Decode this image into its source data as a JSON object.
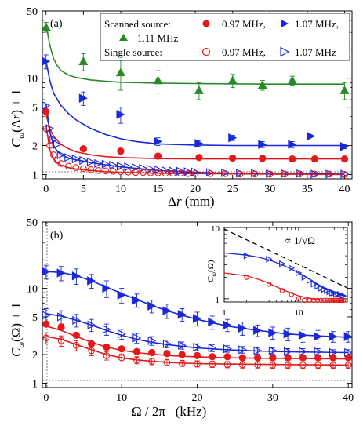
{
  "chart_data": [
    {
      "type": "scatter",
      "panel_label": "(a)",
      "xlabel_symbol": "Δr",
      "xlabel_unit": "(mm)",
      "ylabel": "C_ω(Δr) + 1",
      "xlim": [
        -0.5,
        41
      ],
      "ylim": [
        0.9,
        50
      ],
      "yscale": "log",
      "x_ticks": [
        0,
        5,
        10,
        15,
        20,
        25,
        30,
        35,
        40
      ],
      "y_ticks": [
        1,
        2,
        5,
        10,
        50
      ],
      "reference_line": 1,
      "legend": {
        "position": "top-right",
        "scanned_label": "Scanned source:",
        "single_label": "Single source:",
        "entries": [
          {
            "text": "0.97 MHz,"
          },
          {
            "text": "1.07 MHz,"
          },
          {
            "text": "1.11 MHz"
          },
          {
            "text": "0.97 MHz,"
          },
          {
            "text": "1.07 MHz"
          }
        ]
      },
      "series": [
        {
          "legend_group": "Scanned source",
          "name": "1.11 MHz",
          "color": "#2a8a2a",
          "marker": "triangle-up",
          "filled": true,
          "x": [
            0,
            5,
            10,
            15,
            20.5,
            25,
            29,
            33,
            40
          ],
          "y": [
            34,
            15,
            11.5,
            9.5,
            7.5,
            9.5,
            8.5,
            9.5,
            7.5
          ],
          "yerr": [
            4,
            3,
            4,
            2.5,
            1.5,
            1.5,
            1,
            1,
            1.5
          ],
          "fit_x": [
            0,
            0.5,
            1,
            1.5,
            2,
            3,
            4,
            6,
            8,
            10,
            15,
            20,
            30,
            40
          ],
          "fit_y": [
            36,
            22,
            16,
            13.5,
            12,
            10.8,
            10.2,
            9.6,
            9.3,
            9.1,
            8.9,
            8.8,
            8.7,
            8.7
          ]
        },
        {
          "legend_group": "Scanned source",
          "name": "1.07 MHz",
          "color": "#1a28d8",
          "marker": "triangle-right",
          "filled": true,
          "x": [
            0,
            5,
            10,
            15,
            20.5,
            25,
            29,
            33,
            35.5,
            40
          ],
          "y": [
            15,
            6.2,
            4.2,
            2.2,
            2.1,
            2.4,
            2.05,
            2.05,
            2.5,
            1.95
          ],
          "yerr": [
            2.5,
            1,
            0.8,
            0.2,
            0.15,
            0.15,
            0.15,
            0.15,
            0,
            0.1
          ],
          "fit_x": [
            0,
            0.5,
            1,
            2,
            3,
            4,
            6,
            8,
            10,
            12,
            15,
            20,
            25,
            30,
            40
          ],
          "fit_y": [
            15,
            9.5,
            7,
            5.2,
            4.3,
            3.7,
            3.0,
            2.6,
            2.35,
            2.2,
            2.08,
            2.02,
            2.0,
            2.0,
            2.0
          ]
        },
        {
          "legend_group": "Scanned source",
          "name": "0.97 MHz",
          "color": "#e41a1a",
          "marker": "circle",
          "filled": true,
          "x": [
            0,
            5,
            10,
            15,
            20.5,
            25,
            29,
            33,
            36,
            40
          ],
          "y": [
            4.5,
            1.85,
            1.75,
            1.55,
            1.5,
            1.48,
            1.47,
            1.45,
            1.45,
            1.45
          ],
          "yerr": [
            0.25,
            0.05,
            0.05,
            0.04,
            0.03,
            0.03,
            0.03,
            0.03,
            0.03,
            0.03
          ],
          "fit_x": [
            0,
            0.5,
            1,
            2,
            3,
            4,
            6,
            8,
            10,
            15,
            20,
            30,
            40
          ],
          "fit_y": [
            4.2,
            3.0,
            2.5,
            2.05,
            1.85,
            1.72,
            1.6,
            1.53,
            1.5,
            1.46,
            1.45,
            1.45,
            1.45
          ]
        },
        {
          "legend_group": "Single source",
          "name": "1.07 MHz",
          "color": "#1a28d8",
          "marker": "triangle-right",
          "filled": false,
          "x": [
            0,
            0.5,
            1,
            1.5,
            2,
            3,
            4,
            5,
            6,
            7,
            8,
            9,
            10,
            11,
            12,
            13,
            14,
            15,
            16,
            17,
            18,
            19,
            20,
            22,
            24,
            26,
            28,
            30,
            32,
            34,
            36,
            38,
            40
          ],
          "y": [
            5.2,
            3.0,
            2.3,
            2.05,
            1.6,
            1.5,
            1.45,
            1.4,
            1.35,
            1.3,
            1.28,
            1.25,
            1.22,
            1.2,
            1.18,
            1.16,
            1.14,
            1.12,
            1.1,
            1.09,
            1.08,
            1.07,
            1.06,
            1.05,
            1.04,
            1.03,
            1.03,
            1.02,
            1.02,
            1.02,
            1.01,
            1.01,
            1.01
          ],
          "fit_x": [
            0,
            0.5,
            1,
            1.5,
            2,
            3,
            4,
            6,
            8,
            10,
            12,
            15,
            20,
            25,
            30,
            40
          ],
          "fit_y": [
            5.4,
            2.8,
            2.0,
            1.75,
            1.6,
            1.48,
            1.42,
            1.33,
            1.26,
            1.2,
            1.16,
            1.1,
            1.05,
            1.03,
            1.02,
            1.01
          ]
        },
        {
          "legend_group": "Single source",
          "name": "0.97 MHz",
          "color": "#e41a1a",
          "marker": "circle",
          "filled": false,
          "x": [
            0,
            0.5,
            1,
            1.5,
            2,
            3,
            4,
            5,
            6,
            7,
            8,
            9,
            10,
            11,
            12,
            13,
            14,
            15,
            16,
            17,
            18,
            19,
            20,
            22,
            24,
            26,
            28,
            30,
            32,
            34,
            36,
            38,
            40
          ],
          "y": [
            3.0,
            2.0,
            1.6,
            1.4,
            1.3,
            1.22,
            1.18,
            1.15,
            1.12,
            1.1,
            1.09,
            1.08,
            1.07,
            1.06,
            1.05,
            1.05,
            1.04,
            1.04,
            1.03,
            1.03,
            1.03,
            1.02,
            1.02,
            1.02,
            1.02,
            1.01,
            1.01,
            1.01,
            1.01,
            1.01,
            1.01,
            1.01,
            1.0
          ],
          "fit_x": [
            0,
            0.5,
            1,
            1.5,
            2,
            3,
            4,
            6,
            8,
            10,
            15,
            20,
            30,
            40
          ],
          "fit_y": [
            3.2,
            1.8,
            1.45,
            1.32,
            1.25,
            1.18,
            1.14,
            1.1,
            1.07,
            1.05,
            1.03,
            1.02,
            1.01,
            1.0
          ]
        }
      ]
    },
    {
      "type": "scatter",
      "panel_label": "(b)",
      "xlabel": "Ω / 2π   (kHz)",
      "ylabel": "C_ω(Ω) + 1",
      "xlim": [
        -0.5,
        40.5
      ],
      "ylim": [
        0.9,
        50
      ],
      "yscale": "log",
      "x_ticks": [
        0,
        10,
        20,
        30,
        40
      ],
      "y_ticks": [
        1,
        2,
        5,
        10,
        50
      ],
      "reference_line": 1,
      "series": [
        {
          "name": "Scanned 1.07 MHz",
          "color": "#1a28d8",
          "marker": "triangle-right",
          "filled": true,
          "x": [
            0,
            2,
            4,
            6,
            8,
            10,
            12,
            14,
            16,
            18,
            20,
            22,
            24,
            26,
            28,
            30,
            32,
            34,
            36,
            38,
            40
          ],
          "y": [
            15,
            14.5,
            13.5,
            12,
            10,
            8.5,
            7.5,
            6.5,
            5.8,
            5.3,
            4.8,
            4.4,
            4.1,
            3.8,
            3.6,
            3.4,
            3.3,
            3.2,
            3.1,
            3.1,
            3.1
          ],
          "yerr": [
            2.5,
            2.5,
            2.5,
            2,
            2,
            1.5,
            1.2,
            1,
            1,
            0.8,
            0.8,
            0.7,
            0.6,
            0.6,
            0.5,
            0.5,
            0.5,
            0.5,
            0.5,
            0.4,
            0.4
          ],
          "fit_x": [
            0,
            2,
            4,
            6,
            8,
            10,
            12,
            14,
            16,
            18,
            20,
            24,
            28,
            32,
            36,
            40
          ],
          "fit_y": [
            15,
            14.7,
            13.6,
            12,
            10.3,
            8.8,
            7.6,
            6.6,
            5.8,
            5.2,
            4.7,
            4.0,
            3.6,
            3.3,
            3.15,
            3.05
          ]
        },
        {
          "name": "Single 1.07 MHz",
          "color": "#1a28d8",
          "marker": "triangle-right",
          "filled": false,
          "x": [
            0,
            2,
            4,
            6,
            8,
            10,
            12,
            14,
            16,
            18,
            20,
            22,
            24,
            26,
            28,
            30,
            32,
            34,
            36,
            38,
            40
          ],
          "y": [
            5.2,
            5.0,
            4.6,
            4.1,
            3.7,
            3.3,
            3.0,
            2.8,
            2.6,
            2.5,
            2.4,
            2.35,
            2.3,
            2.25,
            2.2,
            2.2,
            2.15,
            2.15,
            2.15,
            2.1,
            2.1
          ],
          "yerr": [
            0.9,
            0.8,
            0.7,
            0.6,
            0.5,
            0.4,
            0.35,
            0.3,
            0.25,
            0.22,
            0.2,
            0.2,
            0.18,
            0.18,
            0.17,
            0.17,
            0.16,
            0.16,
            0.16,
            0.15,
            0.15
          ],
          "fit_x": [
            0,
            2,
            4,
            6,
            8,
            10,
            12,
            14,
            16,
            18,
            20,
            24,
            28,
            32,
            36,
            40
          ],
          "fit_y": [
            5.4,
            5.1,
            4.6,
            4.1,
            3.6,
            3.2,
            2.9,
            2.7,
            2.55,
            2.45,
            2.35,
            2.25,
            2.18,
            2.14,
            2.12,
            2.1
          ]
        },
        {
          "name": "Scanned 0.97 MHz",
          "color": "#e41a1a",
          "marker": "circle",
          "filled": true,
          "x": [
            0,
            2,
            4,
            6,
            8,
            10,
            12,
            14,
            16,
            18,
            20,
            22,
            24,
            26,
            28,
            30,
            32,
            34,
            36,
            38,
            40
          ],
          "y": [
            4.2,
            3.9,
            3.2,
            2.6,
            2.4,
            2.3,
            2.15,
            2.1,
            2.05,
            2.0,
            1.95,
            1.9,
            1.9,
            1.85,
            1.85,
            1.85,
            1.85,
            1.85,
            1.85,
            1.85,
            1.85
          ],
          "fit_x": [
            0,
            2,
            4,
            6,
            8,
            10,
            12,
            14,
            16,
            18,
            20,
            24,
            28,
            32,
            36,
            40
          ],
          "fit_y": [
            4.0,
            3.6,
            3.1,
            2.7,
            2.4,
            2.22,
            2.1,
            2.02,
            1.96,
            1.92,
            1.89,
            1.85,
            1.83,
            1.82,
            1.81,
            1.8
          ]
        },
        {
          "name": "Single 0.97 MHz",
          "color": "#e41a1a",
          "marker": "circle",
          "filled": false,
          "x": [
            0,
            2,
            4,
            6,
            8,
            10,
            12,
            14,
            16,
            18,
            20,
            22,
            24,
            26,
            28,
            30,
            32,
            34,
            36,
            38,
            40
          ],
          "y": [
            3.0,
            2.8,
            2.5,
            2.2,
            1.95,
            1.85,
            1.75,
            1.7,
            1.65,
            1.62,
            1.6,
            1.58,
            1.57,
            1.56,
            1.56,
            1.55,
            1.55,
            1.55,
            1.55,
            1.55,
            1.55
          ],
          "yerr": [
            0.4,
            0.35,
            0.3,
            0.25,
            0.2,
            0.18,
            0.15,
            0.14,
            0.13,
            0.12,
            0.12,
            0.12,
            0.12,
            0.12,
            0.12,
            0.12,
            0.12,
            0.12,
            0.12,
            0.12,
            0.12
          ],
          "fit_x": [
            0,
            2,
            4,
            6,
            8,
            10,
            12,
            14,
            16,
            18,
            20,
            24,
            28,
            32,
            36,
            40
          ],
          "fit_y": [
            3.1,
            2.9,
            2.55,
            2.25,
            2.0,
            1.85,
            1.76,
            1.7,
            1.66,
            1.63,
            1.61,
            1.59,
            1.58,
            1.57,
            1.56,
            1.55
          ]
        }
      ],
      "inset": {
        "ylabel": "C_ω(Ω)",
        "xscale": "log",
        "yscale": "log",
        "xlim": [
          1,
          45
        ],
        "ylim": [
          0.9,
          10
        ],
        "x_ticks": [
          1,
          10
        ],
        "y_ticks": [
          1,
          10
        ],
        "annotation": "∝ 1/√Ω",
        "power_law_line": {
          "x": [
            1,
            45
          ],
          "y": [
            9.5,
            1.42
          ],
          "style": "dashed",
          "color": "#000000"
        },
        "series": [
          {
            "name": "Single 1.07 MHz",
            "color": "#1a28d8",
            "marker": "triangle-right",
            "filled": false,
            "x": [
              2,
              4,
              6,
              8,
              10,
              12,
              14,
              16,
              18,
              20,
              22,
              24,
              26,
              28,
              30,
              32,
              34,
              36,
              38,
              40
            ],
            "y": [
              4.0,
              3.6,
              3.1,
              2.7,
              2.3,
              2.0,
              1.8,
              1.6,
              1.5,
              1.4,
              1.35,
              1.3,
              1.25,
              1.2,
              1.2,
              1.15,
              1.15,
              1.15,
              1.1,
              1.1
            ],
            "fit_x": [
              1,
              2,
              3,
              4,
              6,
              8,
              10,
              15,
              20,
              30,
              40
            ],
            "fit_y": [
              4.4,
              4.1,
              3.8,
              3.5,
              3.0,
              2.6,
              2.3,
              1.8,
              1.5,
              1.25,
              1.1
            ]
          },
          {
            "name": "Single 0.97 MHz",
            "color": "#e41a1a",
            "marker": "circle",
            "filled": false,
            "x": [
              2,
              4,
              6,
              8,
              10,
              12,
              14,
              16,
              18,
              20,
              22,
              24,
              26,
              28,
              30,
              32,
              34,
              36,
              38,
              40
            ],
            "y": [
              2.0,
              1.6,
              1.3,
              1.15,
              1.0,
              0.95,
              0.95,
              0.95,
              0.95,
              0.95,
              0.95,
              0.95,
              0.95,
              0.95,
              0.95,
              0.95,
              0.95,
              0.95,
              0.95,
              0.95
            ],
            "fit_x": [
              1,
              2,
              3,
              4,
              6,
              8,
              10,
              15,
              20,
              30,
              40
            ],
            "fit_y": [
              2.3,
              2.1,
              1.85,
              1.65,
              1.35,
              1.2,
              1.1,
              1.0,
              0.96,
              0.94,
              0.93
            ]
          }
        ]
      }
    }
  ]
}
